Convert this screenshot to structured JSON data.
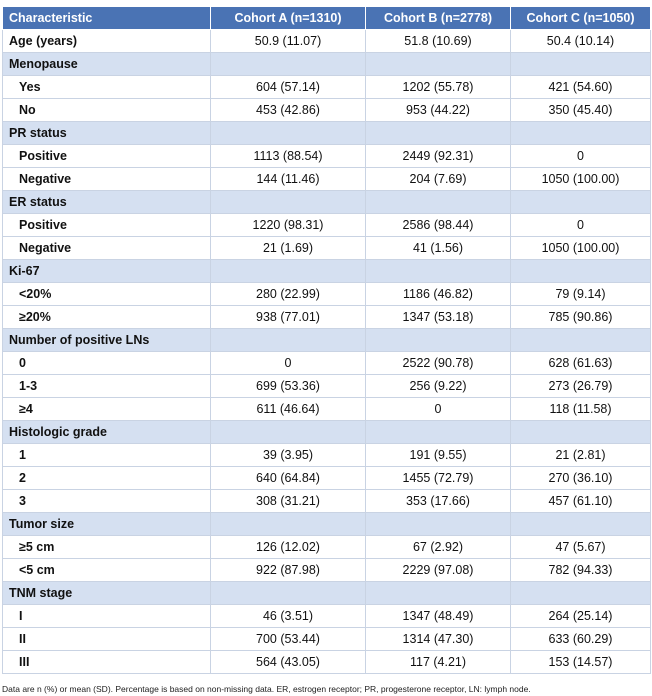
{
  "table": {
    "header": [
      "Characteristic",
      "Cohort A (n=1310)",
      "Cohort B (n=2778)",
      "Cohort C (n=1050)"
    ],
    "sections": [
      {
        "title": "Age (years)",
        "values": [
          "50.9 (11.07)",
          "51.8 (10.69)",
          "50.4 (10.14)"
        ]
      },
      {
        "title": "Menopause",
        "rows": [
          {
            "label": "Yes",
            "values": [
              "604 (57.14)",
              "1202 (55.78)",
              "421 (54.60)"
            ]
          },
          {
            "label": "No",
            "values": [
              "453 (42.86)",
              "953 (44.22)",
              "350 (45.40)"
            ]
          }
        ]
      },
      {
        "title": "PR status",
        "rows": [
          {
            "label": "Positive",
            "values": [
              "1113 (88.54)",
              "2449 (92.31)",
              "0"
            ]
          },
          {
            "label": "Negative",
            "values": [
              "144 (11.46)",
              "204 (7.69)",
              "1050 (100.00)"
            ]
          }
        ]
      },
      {
        "title": "ER status",
        "rows": [
          {
            "label": "Positive",
            "values": [
              "1220 (98.31)",
              "2586 (98.44)",
              "0"
            ]
          },
          {
            "label": "Negative",
            "values": [
              "21 (1.69)",
              "41 (1.56)",
              "1050 (100.00)"
            ]
          }
        ]
      },
      {
        "title": "Ki-67",
        "rows": [
          {
            "label": "<20%",
            "values": [
              "280 (22.99)",
              "1186 (46.82)",
              "79 (9.14)"
            ]
          },
          {
            "label": "≥20%",
            "values": [
              "938 (77.01)",
              "1347 (53.18)",
              "785 (90.86)"
            ]
          }
        ]
      },
      {
        "title": "Number of positive LNs",
        "rows": [
          {
            "label": "0",
            "values": [
              "0",
              "2522 (90.78)",
              "628 (61.63)"
            ]
          },
          {
            "label": "1-3",
            "values": [
              "699 (53.36)",
              "256 (9.22)",
              "273 (26.79)"
            ]
          },
          {
            "label": "≥4",
            "values": [
              "611 (46.64)",
              "0",
              "118 (11.58)"
            ]
          }
        ]
      },
      {
        "title": "Histologic grade",
        "rows": [
          {
            "label": "1",
            "values": [
              "39 (3.95)",
              "191 (9.55)",
              "21 (2.81)"
            ]
          },
          {
            "label": "2",
            "values": [
              "640 (64.84)",
              "1455 (72.79)",
              "270 (36.10)"
            ]
          },
          {
            "label": "3",
            "values": [
              "308 (31.21)",
              "353 (17.66)",
              "457 (61.10)"
            ]
          }
        ]
      },
      {
        "title": "Tumor size",
        "rows": [
          {
            "label": "≥5 cm",
            "values": [
              "126 (12.02)",
              "67 (2.92)",
              "47 (5.67)"
            ]
          },
          {
            "label": "<5 cm",
            "values": [
              "922 (87.98)",
              "2229 (97.08)",
              "782 (94.33)"
            ]
          }
        ]
      },
      {
        "title": "TNM stage",
        "rows": [
          {
            "label": "I",
            "values": [
              "46 (3.51)",
              "1347 (48.49)",
              "264 (25.14)"
            ]
          },
          {
            "label": "II",
            "values": [
              "700 (53.44)",
              "1314 (47.30)",
              "633 (60.29)"
            ]
          },
          {
            "label": "III",
            "values": [
              "564 (43.05)",
              "117 (4.21)",
              "153 (14.57)"
            ]
          }
        ]
      }
    ],
    "footnote": "Data are n (%) or mean (SD). Percentage is based on non-missing data. ER, estrogen receptor; PR, progesterone receptor, LN: lymph node."
  }
}
